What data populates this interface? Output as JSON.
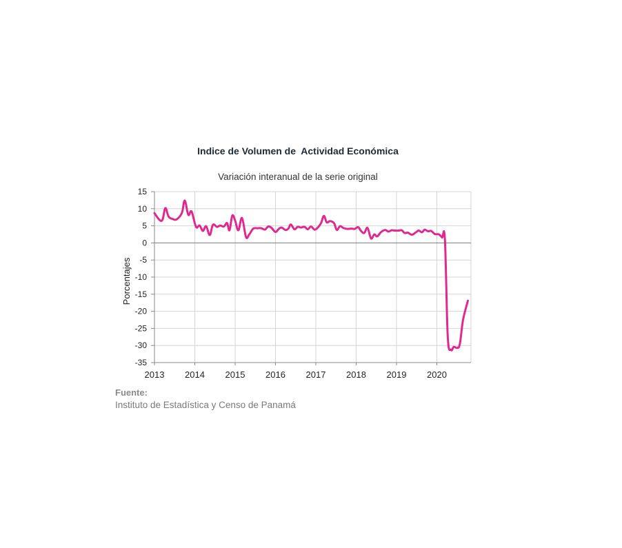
{
  "chart_data": {
    "type": "line",
    "title": "Indice de Volumen de  Actividad Económica",
    "subtitle": "Variación interanual de la serie original",
    "ylabel": "Porcentajes",
    "xlabel": "",
    "ylim": [
      -35,
      15
    ],
    "yticks": [
      15,
      10,
      5,
      0,
      -5,
      -10,
      -15,
      -20,
      -25,
      -30,
      -35
    ],
    "xlim": [
      2013.0,
      2020.8
    ],
    "xticks": [
      2013,
      2014,
      2015,
      2016,
      2017,
      2018,
      2019,
      2020
    ],
    "grid": true,
    "line_color": "#e0288f",
    "series": [
      {
        "values": [
          [
            2013.0,
            8.7
          ],
          [
            2013.12,
            6.8
          ],
          [
            2013.2,
            6.8
          ],
          [
            2013.27,
            10.2
          ],
          [
            2013.35,
            7.7
          ],
          [
            2013.45,
            7.0
          ],
          [
            2013.55,
            6.9
          ],
          [
            2013.68,
            8.8
          ],
          [
            2013.75,
            12.4
          ],
          [
            2013.84,
            8.2
          ],
          [
            2013.92,
            9.2
          ],
          [
            2014.03,
            4.7
          ],
          [
            2014.12,
            5.1
          ],
          [
            2014.2,
            3.5
          ],
          [
            2014.28,
            4.9
          ],
          [
            2014.37,
            2.3
          ],
          [
            2014.45,
            5.3
          ],
          [
            2014.55,
            4.7
          ],
          [
            2014.63,
            5.1
          ],
          [
            2014.72,
            4.8
          ],
          [
            2014.8,
            5.8
          ],
          [
            2014.86,
            3.7
          ],
          [
            2014.93,
            8.0
          ],
          [
            2015.0,
            6.5
          ],
          [
            2015.08,
            3.7
          ],
          [
            2015.17,
            7.3
          ],
          [
            2015.27,
            1.7
          ],
          [
            2015.35,
            2.5
          ],
          [
            2015.45,
            4.2
          ],
          [
            2015.55,
            4.3
          ],
          [
            2015.65,
            4.3
          ],
          [
            2015.74,
            3.9
          ],
          [
            2015.82,
            4.8
          ],
          [
            2015.9,
            4.4
          ],
          [
            2016.0,
            3.2
          ],
          [
            2016.08,
            4.1
          ],
          [
            2016.15,
            4.5
          ],
          [
            2016.25,
            3.8
          ],
          [
            2016.32,
            4.2
          ],
          [
            2016.38,
            5.4
          ],
          [
            2016.47,
            4.0
          ],
          [
            2016.55,
            4.7
          ],
          [
            2016.63,
            4.5
          ],
          [
            2016.72,
            4.7
          ],
          [
            2016.8,
            4.0
          ],
          [
            2016.88,
            4.8
          ],
          [
            2016.97,
            3.9
          ],
          [
            2017.05,
            4.5
          ],
          [
            2017.13,
            5.8
          ],
          [
            2017.2,
            7.9
          ],
          [
            2017.27,
            6.0
          ],
          [
            2017.35,
            6.4
          ],
          [
            2017.45,
            5.8
          ],
          [
            2017.52,
            3.8
          ],
          [
            2017.6,
            4.9
          ],
          [
            2017.68,
            4.4
          ],
          [
            2017.78,
            4.1
          ],
          [
            2017.88,
            4.2
          ],
          [
            2017.96,
            4.1
          ],
          [
            2018.05,
            4.6
          ],
          [
            2018.12,
            3.5
          ],
          [
            2018.2,
            2.9
          ],
          [
            2018.28,
            4.4
          ],
          [
            2018.37,
            1.3
          ],
          [
            2018.45,
            2.5
          ],
          [
            2018.52,
            1.9
          ],
          [
            2018.62,
            3.2
          ],
          [
            2018.72,
            3.8
          ],
          [
            2018.8,
            3.3
          ],
          [
            2018.88,
            3.7
          ],
          [
            2018.96,
            3.6
          ],
          [
            2019.05,
            3.6
          ],
          [
            2019.13,
            3.7
          ],
          [
            2019.2,
            2.9
          ],
          [
            2019.28,
            3.0
          ],
          [
            2019.38,
            2.4
          ],
          [
            2019.47,
            3.0
          ],
          [
            2019.55,
            3.6
          ],
          [
            2019.63,
            3.1
          ],
          [
            2019.7,
            3.9
          ],
          [
            2019.78,
            3.4
          ],
          [
            2019.86,
            3.5
          ],
          [
            2019.95,
            2.6
          ],
          [
            2020.05,
            2.5
          ],
          [
            2020.13,
            1.6
          ],
          [
            2020.2,
            1.0
          ],
          [
            2020.27,
            -27.3
          ],
          [
            2020.35,
            -31.3
          ],
          [
            2020.42,
            -30.4
          ],
          [
            2020.5,
            -30.7
          ],
          [
            2020.57,
            -29.6
          ],
          [
            2020.65,
            -22.5
          ],
          [
            2020.77,
            -16.9
          ]
        ]
      }
    ]
  },
  "source": {
    "heading": "Fuente:",
    "text": "Instituto de Estadística y Censo de Panamá"
  }
}
